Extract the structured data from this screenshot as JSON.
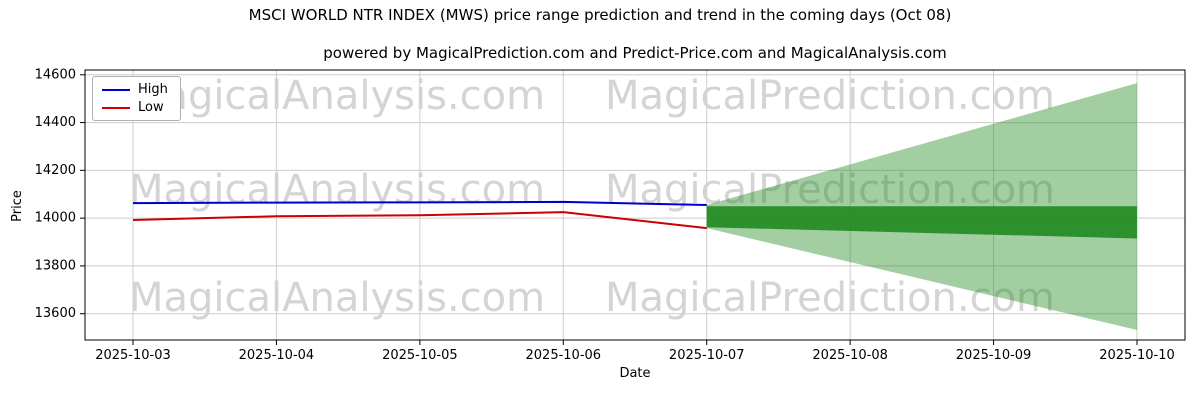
{
  "chart_data": {
    "type": "line",
    "title": "MSCI WORLD NTR INDEX (MWS) price range prediction and trend in the coming days (Oct 08)",
    "subtitle": "powered by MagicalPrediction.com and Predict-Price.com and MagicalAnalysis.com",
    "xlabel": "Date",
    "ylabel": "Price",
    "x_labels": [
      "2025-10-03",
      "2025-10-04",
      "2025-10-05",
      "2025-10-06",
      "2025-10-07",
      "2025-10-08",
      "2025-10-09",
      "2025-10-10"
    ],
    "yticks": [
      13600,
      13800,
      14000,
      14200,
      14400,
      14600
    ],
    "ylim": [
      13490,
      14620
    ],
    "grid": true,
    "legend": {
      "position": "upper left",
      "items": [
        "High",
        "Low"
      ]
    },
    "series": [
      {
        "name": "High",
        "color": "#0000cc",
        "x": [
          0,
          1,
          2,
          3,
          4
        ],
        "values": [
          14063,
          14065,
          14066,
          14068,
          14055
        ]
      },
      {
        "name": "Low",
        "color": "#cc0000",
        "x": [
          0,
          1,
          2,
          3,
          4
        ],
        "values": [
          13992,
          14008,
          14012,
          14025,
          13958
        ]
      }
    ],
    "bands": [
      {
        "name": "prediction-range-outer",
        "color": "#228B22",
        "opacity": 0.42,
        "x": [
          4,
          7
        ],
        "upper": [
          14055,
          14565
        ],
        "lower": [
          13958,
          13532
        ]
      },
      {
        "name": "prediction-trend-inner",
        "color": "#228B22",
        "opacity": 0.92,
        "x": [
          4,
          7
        ],
        "upper": [
          14050,
          14050
        ],
        "lower": [
          13962,
          13915
        ]
      }
    ],
    "colors": {
      "grid": "#cccccc",
      "axis": "#000000",
      "watermark": "#d4d4d4"
    }
  },
  "watermarks": [
    "MagicalAnalysis.com",
    "MagicalPrediction.com"
  ]
}
